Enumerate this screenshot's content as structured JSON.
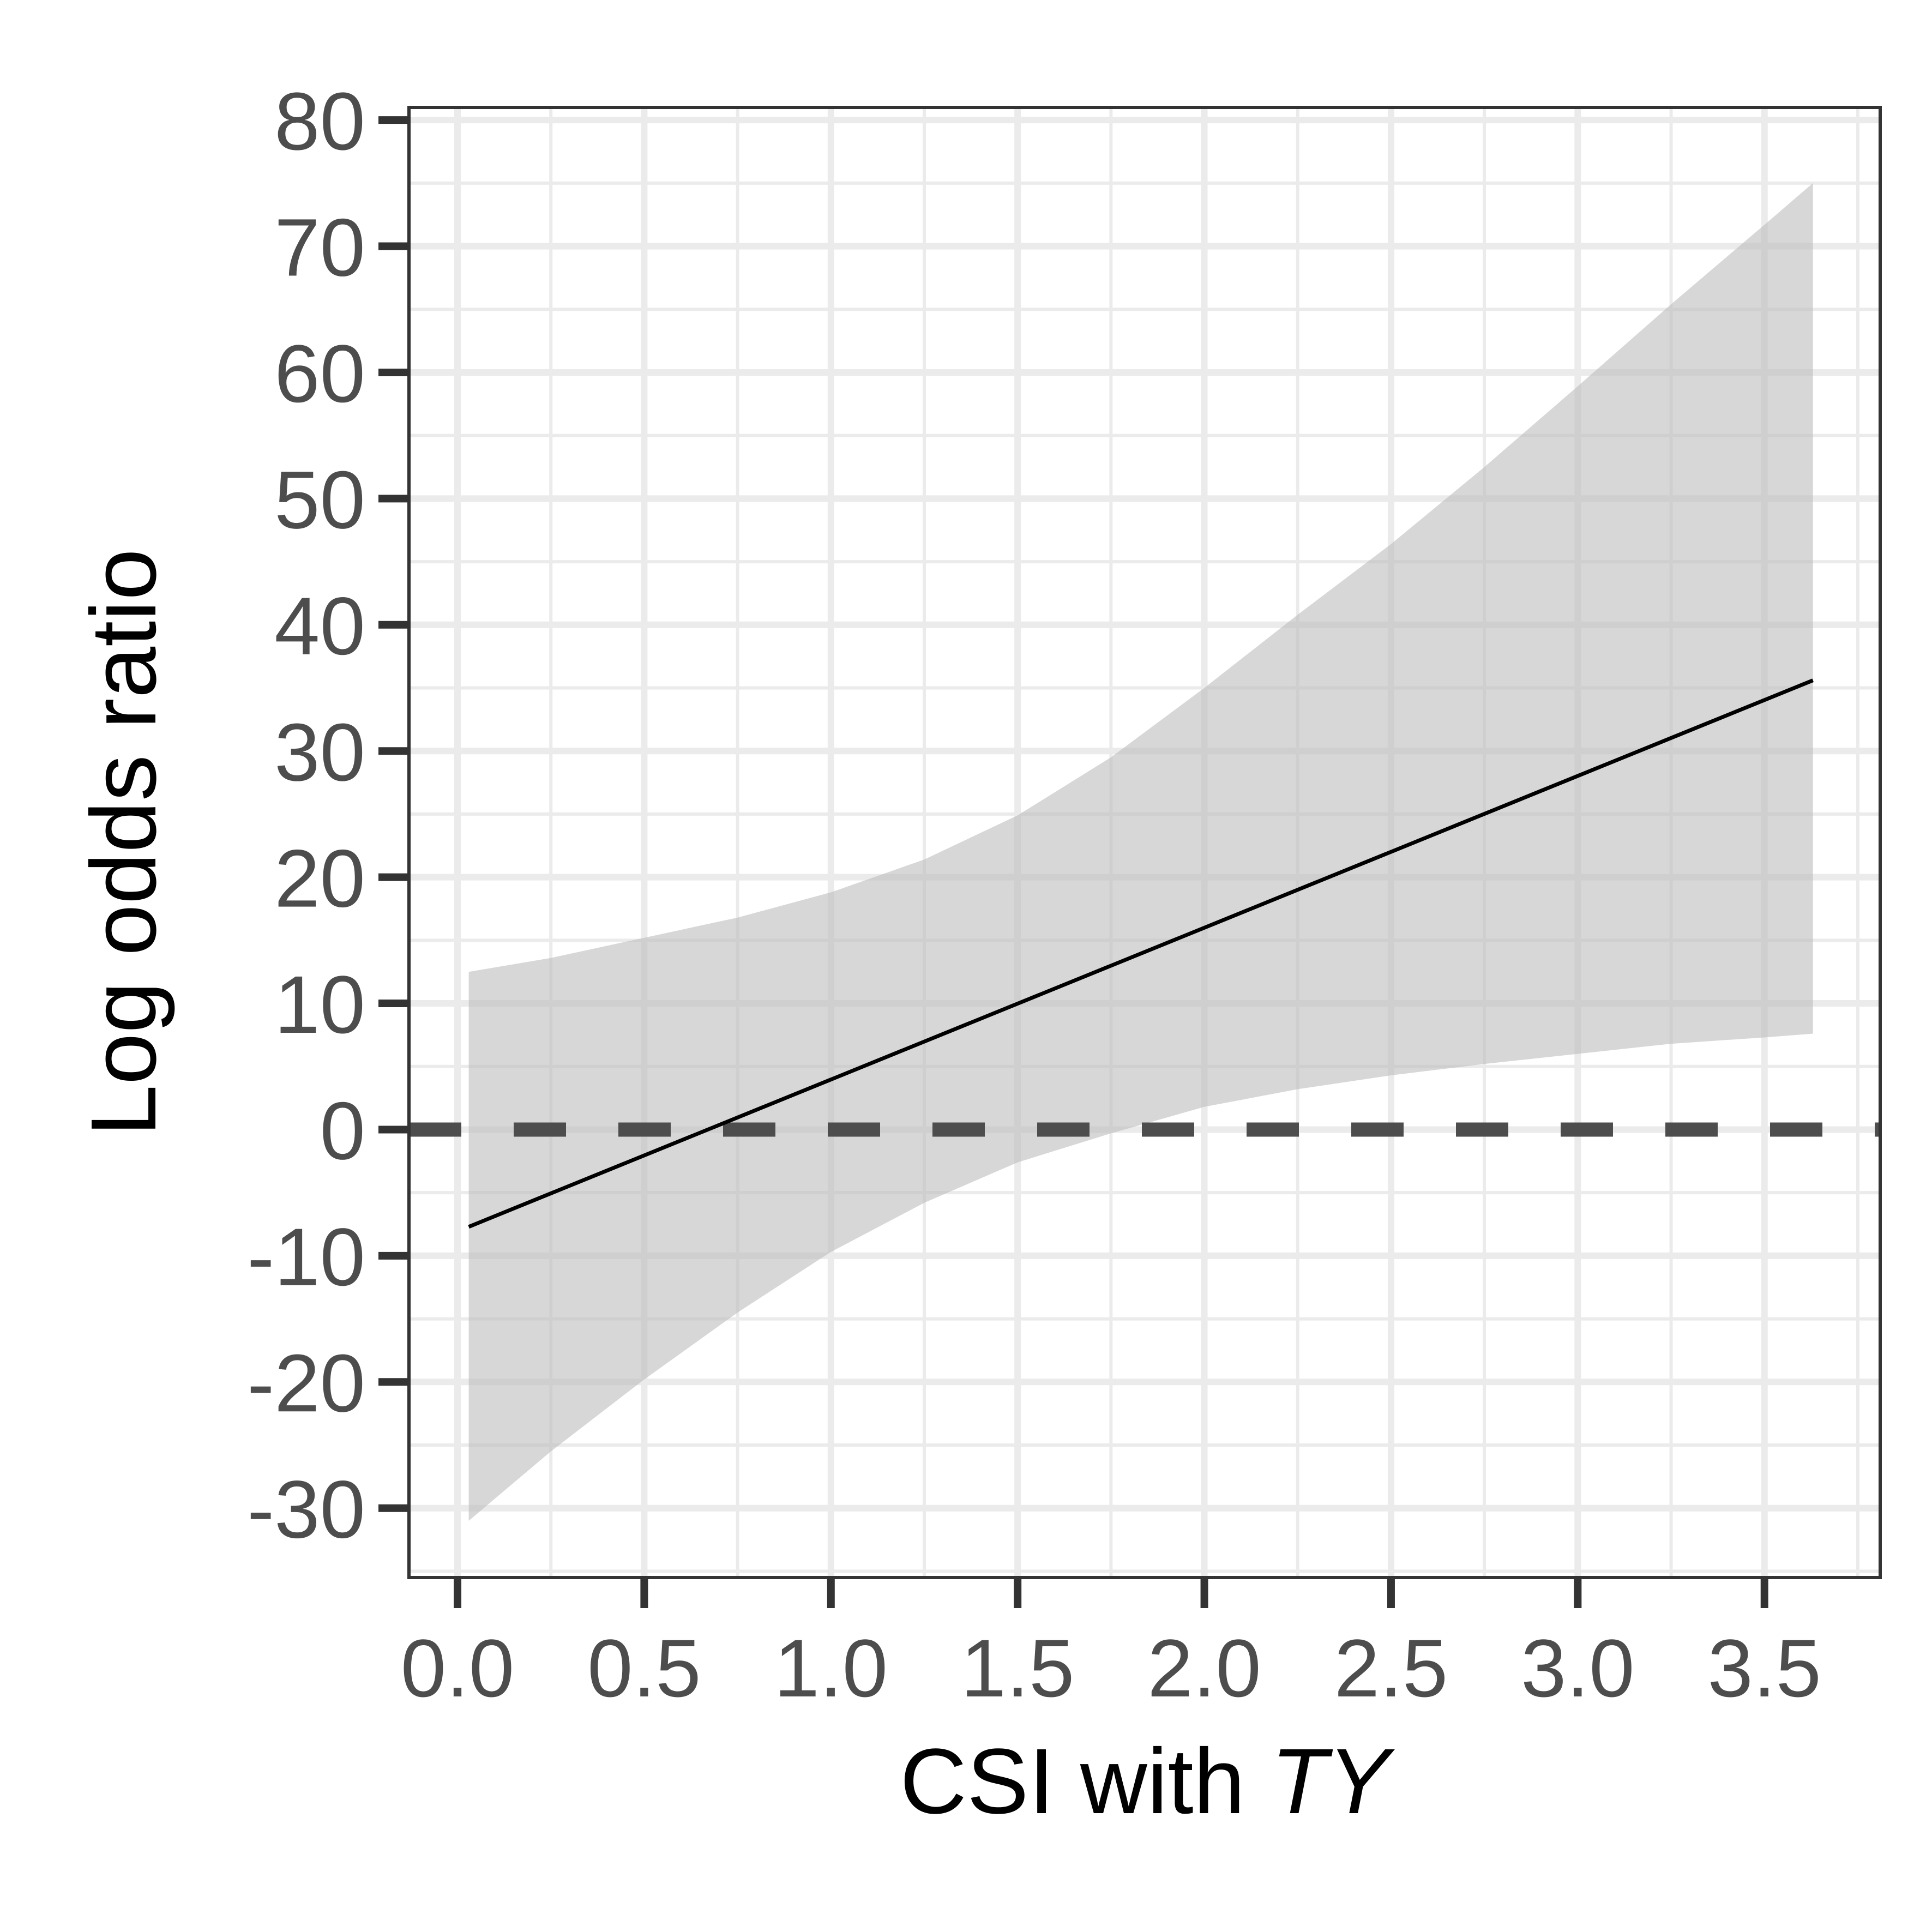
{
  "chart_data": {
    "type": "line",
    "title": "",
    "xlabel_main": "CSI with ",
    "xlabel_italic": "TY",
    "ylabel": "Log odds ratio",
    "xlim": [
      -0.13,
      3.81
    ],
    "ylim": [
      -35.5,
      81
    ],
    "x_ticks": [
      0.0,
      0.5,
      1.0,
      1.5,
      2.0,
      2.5,
      3.0,
      3.5
    ],
    "x_tick_labels": [
      "0.0",
      "0.5",
      "1.0",
      "1.5",
      "2.0",
      "2.5",
      "3.0",
      "3.5"
    ],
    "y_ticks": [
      -30,
      -20,
      -10,
      0,
      10,
      20,
      30,
      40,
      50,
      60,
      70,
      80
    ],
    "y_tick_labels": [
      "-30",
      "-20",
      "-10",
      "0",
      "10",
      "20",
      "30",
      "40",
      "50",
      "60",
      "70",
      "80"
    ],
    "x_minor_ticks": [
      0.25,
      0.75,
      1.25,
      1.75,
      2.25,
      2.75,
      3.25,
      3.75
    ],
    "y_minor_ticks": [
      -35,
      -25,
      -15,
      -5,
      5,
      15,
      25,
      35,
      45,
      55,
      65,
      75
    ],
    "grid": true,
    "series": [
      {
        "x": [
          0.03,
          3.63
        ],
        "y": [
          -7.7,
          35.6
        ]
      }
    ],
    "ribbon": {
      "x": [
        0.03,
        0.25,
        0.5,
        0.75,
        1.0,
        1.25,
        1.5,
        1.75,
        2.0,
        2.25,
        2.5,
        2.75,
        3.0,
        3.25,
        3.5,
        3.63
      ],
      "upper": [
        12.5,
        13.6,
        15.2,
        16.8,
        18.8,
        21.4,
        24.9,
        29.5,
        35.0,
        40.8,
        46.4,
        52.5,
        58.9,
        65.4,
        71.7,
        75.0
      ],
      "lower": [
        -31.0,
        -25.5,
        -19.8,
        -14.5,
        -9.7,
        -5.8,
        -2.6,
        -0.3,
        1.8,
        3.2,
        4.3,
        5.2,
        6.0,
        6.8,
        7.3,
        7.6
      ]
    },
    "reference_line": {
      "y": 0,
      "style": "dashed"
    },
    "colors": {
      "line": "#000000",
      "ribbon": "#bebebe",
      "reference": "#4d4d4d",
      "grid_major": "#ebebeb",
      "grid_minor": "#ebebeb",
      "panel_border": "#333333",
      "tick": "#333333"
    }
  }
}
